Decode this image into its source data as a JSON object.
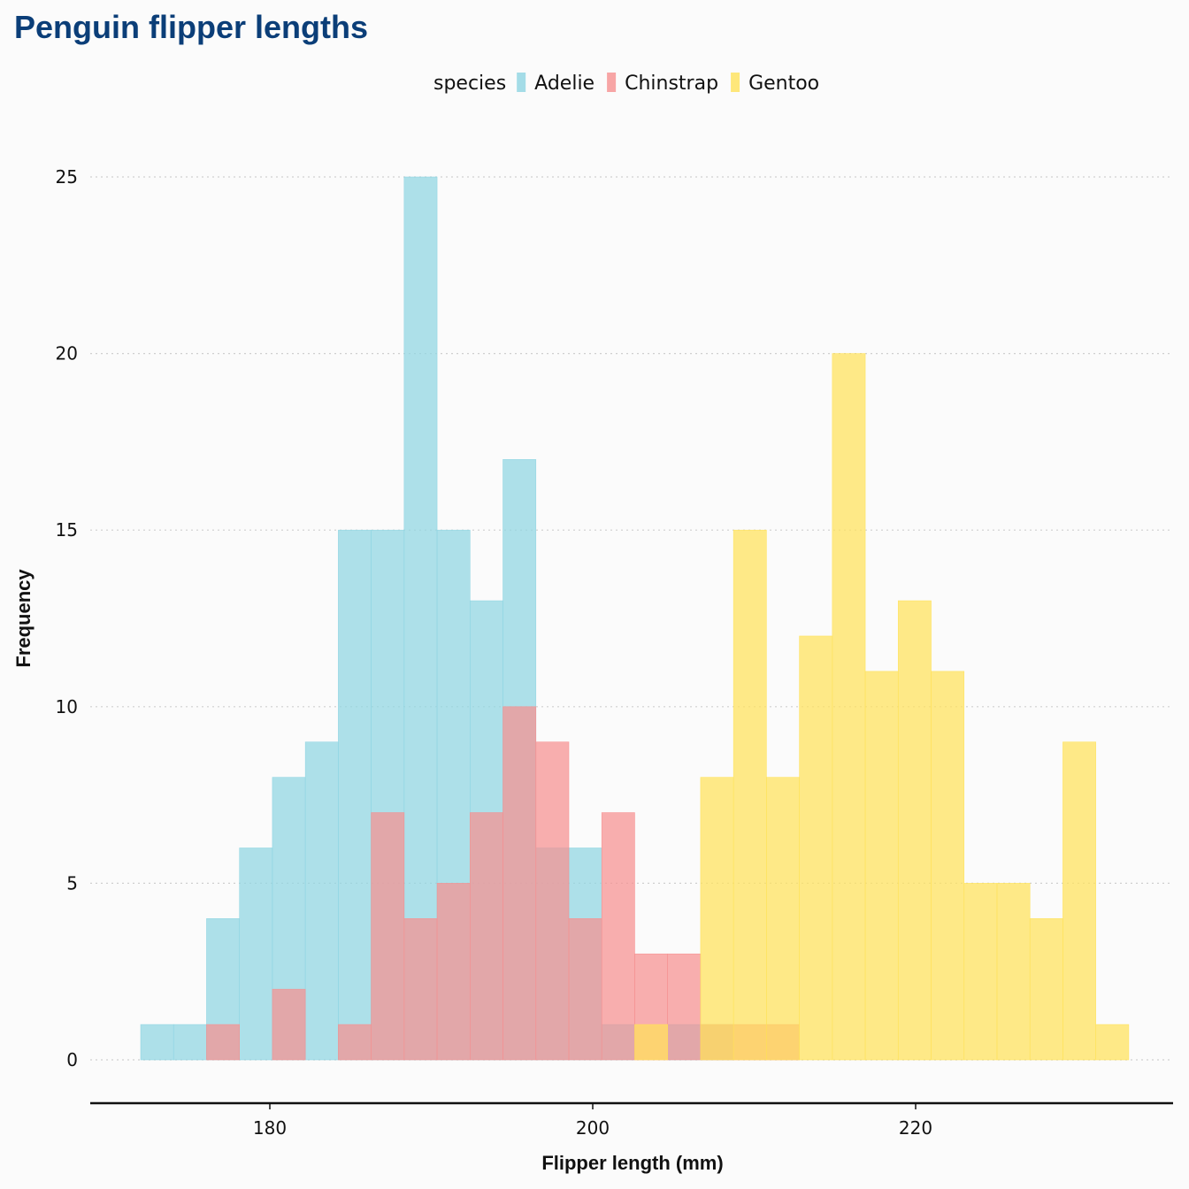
{
  "chart_data": {
    "type": "bar",
    "subtype": "histogram-overlay",
    "title": "Penguin flipper lengths",
    "xlabel": "Flipper length (mm)",
    "ylabel": "Frequency",
    "xlim": [
      169,
      234
    ],
    "ylim": [
      -1,
      25
    ],
    "xticks": [
      180,
      200,
      220
    ],
    "yticks": [
      0,
      5,
      10,
      15,
      20,
      25
    ],
    "grid": "horizontal-dotted",
    "legend": {
      "title": "species",
      "placement": "top-center"
    },
    "bin_width": 2.04,
    "series": [
      {
        "name": "Adelie",
        "color": "#8fd5e2",
        "bins": [
          {
            "x0": 172.0,
            "x1": 174.04,
            "count": 1
          },
          {
            "x0": 174.04,
            "x1": 176.08,
            "count": 1
          },
          {
            "x0": 176.08,
            "x1": 178.12,
            "count": 4
          },
          {
            "x0": 178.12,
            "x1": 180.16,
            "count": 6
          },
          {
            "x0": 180.16,
            "x1": 182.2,
            "count": 8
          },
          {
            "x0": 182.2,
            "x1": 184.24,
            "count": 9
          },
          {
            "x0": 184.24,
            "x1": 186.28,
            "count": 15
          },
          {
            "x0": 186.28,
            "x1": 188.32,
            "count": 15
          },
          {
            "x0": 188.32,
            "x1": 190.36,
            "count": 25
          },
          {
            "x0": 190.36,
            "x1": 192.4,
            "count": 15
          },
          {
            "x0": 192.4,
            "x1": 194.44,
            "count": 13
          },
          {
            "x0": 194.44,
            "x1": 196.48,
            "count": 17
          },
          {
            "x0": 196.48,
            "x1": 198.52,
            "count": 6
          },
          {
            "x0": 198.52,
            "x1": 200.56,
            "count": 6
          },
          {
            "x0": 200.56,
            "x1": 202.6,
            "count": 1
          },
          {
            "x0": 202.6,
            "x1": 204.64,
            "count": 0
          },
          {
            "x0": 204.64,
            "x1": 206.68,
            "count": 1
          },
          {
            "x0": 206.68,
            "x1": 208.72,
            "count": 1
          }
        ]
      },
      {
        "name": "Chinstrap",
        "color": "#f69090",
        "bins": [
          {
            "x0": 176.08,
            "x1": 178.12,
            "count": 1
          },
          {
            "x0": 178.12,
            "x1": 180.16,
            "count": 0
          },
          {
            "x0": 180.16,
            "x1": 182.2,
            "count": 2
          },
          {
            "x0": 182.2,
            "x1": 184.24,
            "count": 0
          },
          {
            "x0": 184.24,
            "x1": 186.28,
            "count": 1
          },
          {
            "x0": 186.28,
            "x1": 188.32,
            "count": 7
          },
          {
            "x0": 188.32,
            "x1": 190.36,
            "count": 4
          },
          {
            "x0": 190.36,
            "x1": 192.4,
            "count": 5
          },
          {
            "x0": 192.4,
            "x1": 194.44,
            "count": 7
          },
          {
            "x0": 194.44,
            "x1": 196.48,
            "count": 10
          },
          {
            "x0": 196.48,
            "x1": 198.52,
            "count": 9
          },
          {
            "x0": 198.52,
            "x1": 200.56,
            "count": 4
          },
          {
            "x0": 200.56,
            "x1": 202.6,
            "count": 7
          },
          {
            "x0": 202.6,
            "x1": 204.64,
            "count": 3
          },
          {
            "x0": 204.64,
            "x1": 206.68,
            "count": 3
          },
          {
            "x0": 206.68,
            "x1": 208.72,
            "count": 1
          },
          {
            "x0": 208.72,
            "x1": 210.76,
            "count": 1
          },
          {
            "x0": 210.76,
            "x1": 212.8,
            "count": 1
          }
        ]
      },
      {
        "name": "Gentoo",
        "color": "#ffe25a",
        "bins": [
          {
            "x0": 202.6,
            "x1": 204.64,
            "count": 1
          },
          {
            "x0": 204.64,
            "x1": 206.68,
            "count": 0
          },
          {
            "x0": 206.68,
            "x1": 208.72,
            "count": 8
          },
          {
            "x0": 208.72,
            "x1": 210.76,
            "count": 15
          },
          {
            "x0": 210.76,
            "x1": 212.8,
            "count": 8
          },
          {
            "x0": 212.8,
            "x1": 214.84,
            "count": 12
          },
          {
            "x0": 214.84,
            "x1": 216.88,
            "count": 20
          },
          {
            "x0": 216.88,
            "x1": 218.92,
            "count": 11
          },
          {
            "x0": 218.92,
            "x1": 220.96,
            "count": 13
          },
          {
            "x0": 220.96,
            "x1": 223.0,
            "count": 11
          },
          {
            "x0": 223.0,
            "x1": 225.04,
            "count": 5
          },
          {
            "x0": 225.04,
            "x1": 227.08,
            "count": 5
          },
          {
            "x0": 227.08,
            "x1": 229.12,
            "count": 4
          },
          {
            "x0": 229.12,
            "x1": 231.16,
            "count": 9
          },
          {
            "x0": 231.16,
            "x1": 233.2,
            "count": 1
          }
        ]
      }
    ]
  }
}
